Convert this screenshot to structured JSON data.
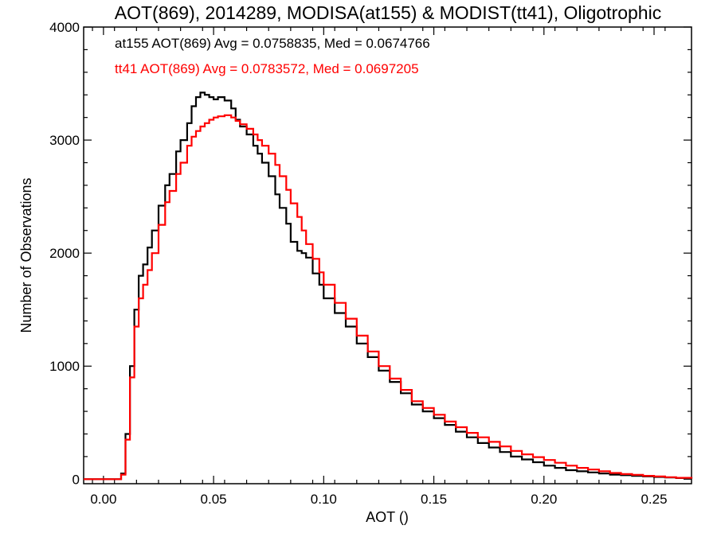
{
  "chart_data": {
    "type": "line",
    "title": "AOT(869), 2014289, MODISA(at155) & MODIST(tt41), Oligotrophic",
    "xlabel": "AOT ()",
    "ylabel": "Number of Observations",
    "xlim": [
      -0.009,
      0.267
    ],
    "ylim": [
      -40,
      4000
    ],
    "x_ticks": [
      0.0,
      0.05,
      0.1,
      0.15,
      0.2,
      0.25
    ],
    "x_tick_labels": [
      "0.00",
      "0.05",
      "0.10",
      "0.15",
      "0.20",
      "0.25"
    ],
    "y_ticks": [
      0,
      1000,
      2000,
      3000,
      4000
    ],
    "y_tick_labels": [
      "0",
      "1000",
      "2000",
      "3000",
      "4000"
    ],
    "grid": false,
    "annotations": [
      {
        "text": "at155 AOT(869) Avg = 0.0758835, Med = 0.0674766",
        "color": "#000000"
      },
      {
        "text": "tt41 AOT(869) Avg = 0.0783572, Med = 0.0697205",
        "color": "#ff0000"
      }
    ],
    "series": [
      {
        "color": "#000000",
        "x": [
          -0.009,
          0.0,
          0.005,
          0.008,
          0.01,
          0.012,
          0.014,
          0.016,
          0.018,
          0.02,
          0.022,
          0.025,
          0.028,
          0.03,
          0.033,
          0.035,
          0.038,
          0.04,
          0.042,
          0.044,
          0.046,
          0.048,
          0.05,
          0.052,
          0.055,
          0.058,
          0.06,
          0.062,
          0.065,
          0.068,
          0.07,
          0.072,
          0.075,
          0.078,
          0.08,
          0.083,
          0.085,
          0.088,
          0.09,
          0.092,
          0.095,
          0.098,
          0.1,
          0.105,
          0.11,
          0.115,
          0.12,
          0.125,
          0.13,
          0.135,
          0.14,
          0.145,
          0.15,
          0.155,
          0.16,
          0.165,
          0.17,
          0.175,
          0.18,
          0.185,
          0.19,
          0.195,
          0.2,
          0.205,
          0.21,
          0.215,
          0.22,
          0.225,
          0.23,
          0.235,
          0.24,
          0.245,
          0.25,
          0.255,
          0.26,
          0.267
        ],
        "y": [
          0,
          0,
          0,
          50,
          400,
          1000,
          1500,
          1800,
          1900,
          2050,
          2200,
          2420,
          2600,
          2700,
          2900,
          3000,
          3150,
          3300,
          3380,
          3420,
          3400,
          3380,
          3360,
          3380,
          3350,
          3280,
          3180,
          3120,
          3050,
          2950,
          2880,
          2800,
          2680,
          2520,
          2400,
          2260,
          2100,
          2020,
          2000,
          1960,
          1820,
          1720,
          1600,
          1470,
          1350,
          1200,
          1080,
          960,
          860,
          760,
          660,
          600,
          540,
          480,
          420,
          370,
          320,
          280,
          240,
          200,
          175,
          150,
          120,
          100,
          80,
          70,
          60,
          50,
          40,
          35,
          30,
          25,
          20,
          15,
          10,
          5
        ]
      },
      {
        "color": "#ff0000",
        "x": [
          -0.009,
          0.0,
          0.005,
          0.008,
          0.01,
          0.012,
          0.014,
          0.016,
          0.018,
          0.02,
          0.022,
          0.025,
          0.028,
          0.03,
          0.033,
          0.035,
          0.038,
          0.04,
          0.042,
          0.044,
          0.046,
          0.048,
          0.05,
          0.052,
          0.055,
          0.058,
          0.06,
          0.062,
          0.065,
          0.068,
          0.07,
          0.072,
          0.075,
          0.078,
          0.08,
          0.083,
          0.085,
          0.088,
          0.09,
          0.092,
          0.095,
          0.098,
          0.1,
          0.105,
          0.11,
          0.115,
          0.12,
          0.125,
          0.13,
          0.135,
          0.14,
          0.145,
          0.15,
          0.155,
          0.16,
          0.165,
          0.17,
          0.175,
          0.18,
          0.185,
          0.19,
          0.195,
          0.2,
          0.205,
          0.21,
          0.215,
          0.22,
          0.225,
          0.23,
          0.235,
          0.24,
          0.245,
          0.25,
          0.255,
          0.26,
          0.267
        ],
        "y": [
          0,
          0,
          0,
          40,
          350,
          900,
          1350,
          1600,
          1720,
          1850,
          2000,
          2250,
          2450,
          2550,
          2700,
          2800,
          2950,
          3030,
          3080,
          3120,
          3150,
          3180,
          3200,
          3210,
          3220,
          3200,
          3170,
          3140,
          3100,
          3050,
          3000,
          2950,
          2880,
          2780,
          2680,
          2560,
          2440,
          2320,
          2200,
          2080,
          1950,
          1830,
          1720,
          1560,
          1420,
          1270,
          1130,
          1000,
          890,
          790,
          690,
          630,
          570,
          510,
          460,
          410,
          370,
          330,
          290,
          250,
          220,
          195,
          170,
          145,
          120,
          100,
          85,
          70,
          55,
          45,
          38,
          30,
          24,
          18,
          12,
          6
        ]
      }
    ]
  }
}
